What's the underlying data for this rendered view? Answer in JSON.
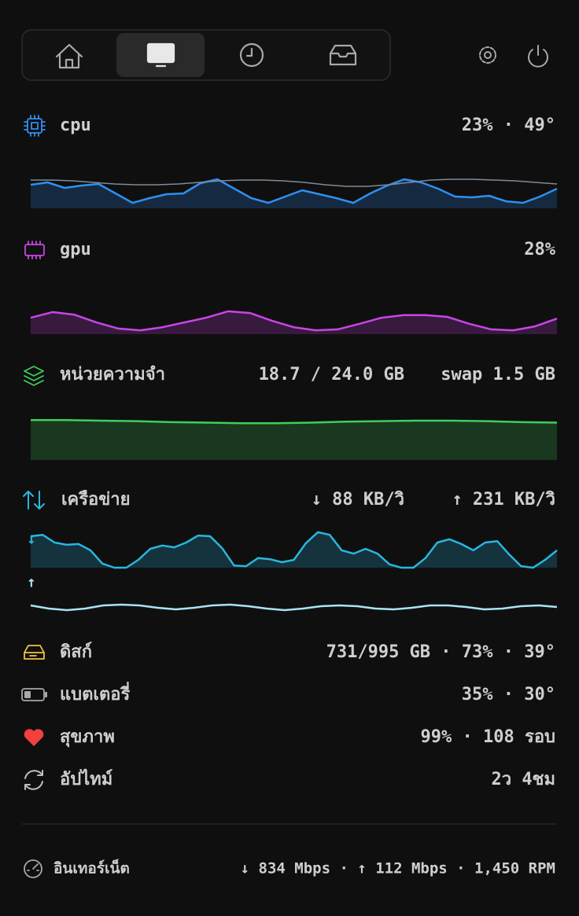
{
  "cpu": {
    "label": "cpu",
    "stats": "23% · 49°",
    "series": [
      {
        "color": "#2f8ff0",
        "values": [
          0.6,
          0.66,
          0.52,
          0.58,
          0.62,
          0.38,
          0.14,
          0.26,
          0.36,
          0.38,
          0.64,
          0.74,
          0.5,
          0.26,
          0.14,
          0.3,
          0.46,
          0.36,
          0.26,
          0.14,
          0.38,
          0.58,
          0.74,
          0.66,
          0.5,
          0.3,
          0.28,
          0.32,
          0.18,
          0.14,
          0.3,
          0.5
        ]
      },
      {
        "color": "#7d8b99",
        "values": [
          0.72,
          0.72,
          0.7,
          0.66,
          0.62,
          0.6,
          0.6,
          0.62,
          0.66,
          0.7,
          0.72,
          0.72,
          0.7,
          0.66,
          0.6,
          0.56,
          0.56,
          0.6,
          0.66,
          0.72,
          0.74,
          0.74,
          0.72,
          0.7,
          0.66,
          0.62
        ]
      }
    ]
  },
  "gpu": {
    "label": "gpu",
    "stats": "28%",
    "series": [
      {
        "color": "#c846e6",
        "values": [
          0.38,
          0.51,
          0.45,
          0.27,
          0.13,
          0.09,
          0.16,
          0.27,
          0.38,
          0.53,
          0.49,
          0.31,
          0.16,
          0.09,
          0.11,
          0.24,
          0.38,
          0.44,
          0.44,
          0.4,
          0.24,
          0.11,
          0.09,
          0.18,
          0.36
        ]
      }
    ]
  },
  "memory": {
    "label": "หน่วยความจำ",
    "used": "18.7 / 24.0 GB",
    "swap": "swap 1.5 GB",
    "series": [
      {
        "color": "#3ecf5a",
        "values": [
          0.78,
          0.78,
          0.77,
          0.76,
          0.74,
          0.73,
          0.72,
          0.72,
          0.73,
          0.75,
          0.76,
          0.77,
          0.77,
          0.76,
          0.74,
          0.73
        ]
      }
    ]
  },
  "network": {
    "label": "เครือข่าย",
    "down": "↓ 88 KB/วิ",
    "up": "↑ 231 KB/วิ",
    "down_marker": "↓",
    "up_marker": "↑",
    "series": [
      {
        "color": "#29b6e0",
        "values": [
          0.85,
          0.89,
          0.68,
          0.62,
          0.64,
          0.47,
          0.11,
          0,
          0,
          0.21,
          0.51,
          0.6,
          0.55,
          0.68,
          0.87,
          0.85,
          0.53,
          0.06,
          0.04,
          0.26,
          0.23,
          0.15,
          0.21,
          0.66,
          0.96,
          0.89,
          0.47,
          0.38,
          0.51,
          0.38,
          0.09,
          0,
          0,
          0.26,
          0.68,
          0.77,
          0.64,
          0.47,
          0.68,
          0.72,
          0.36,
          0.04,
          0,
          0.21,
          0.47
        ]
      },
      {
        "color": "#a8e4f5",
        "values": [
          0.5,
          0.3,
          0.2,
          0.3,
          0.5,
          0.55,
          0.5,
          0.35,
          0.25,
          0.35,
          0.5,
          0.55,
          0.45,
          0.3,
          0.2,
          0.3,
          0.45,
          0.5,
          0.45,
          0.3,
          0.25,
          0.35,
          0.5,
          0.5,
          0.4,
          0.25,
          0.3,
          0.45,
          0.5,
          0.4
        ]
      }
    ]
  },
  "disk": {
    "label": "ดิสก์",
    "stats": "731/995 GB · 73% · 39°"
  },
  "battery": {
    "label": "แบตเตอรี่",
    "stats": "35% · 30°"
  },
  "health": {
    "label": "สุขภาพ",
    "stats": "99% · 108 รอบ"
  },
  "uptime": {
    "label": "อัปไทม์",
    "stats": "2ว 4ชม"
  },
  "footer": {
    "label": "อินเทอร์เน็ต",
    "stats": "↓ 834 Mbps · ↑ 112 Mbps · 1,450 RPM"
  }
}
